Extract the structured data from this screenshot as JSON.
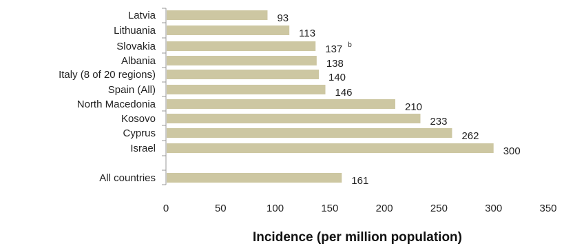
{
  "chart_data": {
    "type": "bar",
    "orientation": "horizontal",
    "categories": [
      "Latvia",
      "Lithuania",
      "Slovakia",
      "Albania",
      "Italy (8 of 20 regions)",
      "Spain (All)",
      "North Macedonia",
      "Kosovo",
      "Cyprus",
      "Israel",
      "All countries"
    ],
    "values": [
      93,
      113,
      137,
      138,
      140,
      146,
      210,
      233,
      262,
      300,
      161
    ],
    "value_notes": [
      "",
      "",
      "b",
      "",
      "",
      "",
      "",
      "",
      "",
      "",
      ""
    ],
    "xlabel": "Incidence (per million population)",
    "xlim": [
      0,
      350
    ],
    "xticks": [
      0,
      50,
      100,
      150,
      200,
      250,
      300,
      350
    ],
    "grid": false,
    "bar_color": "#cdc7a2",
    "axis_color": "#999999"
  }
}
